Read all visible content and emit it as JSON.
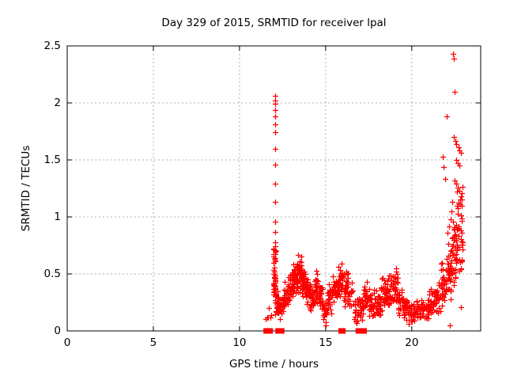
{
  "window": {
    "background": "#ffffff"
  },
  "chart_data": {
    "type": "scatter",
    "title": "Day 329 of 2015, SRMTID for receiver lpal",
    "xlabel": "GPS time / hours",
    "ylabel": "SRMTID / TECUs",
    "xlim": [
      0,
      24
    ],
    "ylim": [
      0,
      2.5
    ],
    "xticks": [
      0,
      5,
      10,
      15,
      20
    ],
    "xtick_labels": [
      "0",
      "5",
      "10",
      "15",
      "20"
    ],
    "yticks": [
      0,
      0.5,
      1,
      1.5,
      2,
      2.5
    ],
    "ytick_labels": [
      "0",
      "0.5",
      "1",
      "1.5",
      "2",
      "2.5"
    ],
    "grid": true,
    "grid_style": "dashed-gray",
    "grid_color": "#b0b0b0",
    "border_color": "#000000",
    "legend": "none",
    "series": [
      {
        "name": "SRMTID",
        "marker": "+",
        "marker_size_px": 7,
        "color": "#ff0000",
        "note": "no data before 11.5 h; vertical spike at 12.07 h up to 2.06; band 0.05-0.7 from 12.3-22 h; rising funnel to 2.43 near 22.4-23 h; clusters pinned at 0 shown as solid blocks",
        "dense_bands": [
          [
            11.5,
            11.85,
            0.08,
            0.25,
            6
          ],
          [
            11.95,
            12.1,
            0.18,
            0.62,
            34
          ],
          [
            11.98,
            12.12,
            0.55,
            0.8,
            14
          ],
          [
            12.05,
            12.28,
            0.1,
            0.4,
            26
          ],
          [
            12.28,
            12.55,
            0.1,
            0.32,
            24
          ],
          [
            12.55,
            12.85,
            0.15,
            0.45,
            30
          ],
          [
            12.85,
            13.1,
            0.22,
            0.55,
            34
          ],
          [
            13.1,
            13.35,
            0.3,
            0.65,
            38
          ],
          [
            13.35,
            13.6,
            0.33,
            0.72,
            40
          ],
          [
            13.6,
            13.85,
            0.28,
            0.58,
            34
          ],
          [
            13.85,
            14.1,
            0.2,
            0.48,
            30
          ],
          [
            14.1,
            14.35,
            0.15,
            0.42,
            28
          ],
          [
            14.35,
            14.6,
            0.2,
            0.55,
            30
          ],
          [
            14.6,
            14.85,
            0.15,
            0.45,
            26
          ],
          [
            14.85,
            15.1,
            0.05,
            0.3,
            22
          ],
          [
            15.1,
            15.4,
            0.15,
            0.45,
            28
          ],
          [
            15.4,
            15.7,
            0.22,
            0.52,
            30
          ],
          [
            15.7,
            16.0,
            0.25,
            0.62,
            34
          ],
          [
            16.0,
            16.3,
            0.2,
            0.55,
            24
          ],
          [
            16.3,
            16.6,
            0.18,
            0.5,
            16
          ],
          [
            16.6,
            16.9,
            0.06,
            0.3,
            20
          ],
          [
            16.9,
            17.2,
            0.08,
            0.35,
            24
          ],
          [
            17.2,
            17.55,
            0.12,
            0.47,
            30
          ],
          [
            17.55,
            17.9,
            0.08,
            0.38,
            28
          ],
          [
            17.9,
            18.2,
            0.1,
            0.4,
            28
          ],
          [
            18.2,
            18.55,
            0.15,
            0.5,
            30
          ],
          [
            18.55,
            18.9,
            0.18,
            0.52,
            30
          ],
          [
            18.9,
            19.2,
            0.2,
            0.58,
            32
          ],
          [
            19.2,
            19.5,
            0.12,
            0.42,
            26
          ],
          [
            19.5,
            19.8,
            0.08,
            0.3,
            24
          ],
          [
            19.8,
            20.2,
            0.05,
            0.25,
            30
          ],
          [
            20.2,
            20.6,
            0.06,
            0.28,
            28
          ],
          [
            20.6,
            21.0,
            0.08,
            0.3,
            28
          ],
          [
            21.0,
            21.35,
            0.1,
            0.38,
            28
          ],
          [
            21.35,
            21.7,
            0.12,
            0.5,
            28
          ],
          [
            21.7,
            22.0,
            0.18,
            0.62,
            30
          ],
          [
            22.0,
            22.3,
            0.25,
            0.82,
            36
          ],
          [
            22.3,
            22.6,
            0.35,
            1.05,
            40
          ],
          [
            22.6,
            22.95,
            0.45,
            1.0,
            30
          ],
          [
            22.6,
            22.95,
            1.0,
            1.35,
            10
          ]
        ],
        "points": [
          [
            12.07,
            2.06
          ],
          [
            12.07,
            2.02
          ],
          [
            12.07,
            1.99
          ],
          [
            12.07,
            1.94
          ],
          [
            12.07,
            1.88
          ],
          [
            12.07,
            1.81
          ],
          [
            12.07,
            1.74
          ],
          [
            12.07,
            1.6
          ],
          [
            12.07,
            1.46
          ],
          [
            12.07,
            1.29
          ],
          [
            12.07,
            1.13
          ],
          [
            12.07,
            0.96
          ],
          [
            12.07,
            0.87
          ],
          [
            22.4,
            2.43
          ],
          [
            22.45,
            2.39
          ],
          [
            22.5,
            2.1
          ],
          [
            22.02,
            1.88
          ],
          [
            22.42,
            1.7
          ],
          [
            22.52,
            1.67
          ],
          [
            22.6,
            1.64
          ],
          [
            22.7,
            1.61
          ],
          [
            22.78,
            1.58
          ],
          [
            22.86,
            1.56
          ],
          [
            21.8,
            1.53
          ],
          [
            22.58,
            1.5
          ],
          [
            22.66,
            1.47
          ],
          [
            22.74,
            1.45
          ],
          [
            21.86,
            1.44
          ],
          [
            21.92,
            1.33
          ],
          [
            22.5,
            1.32
          ],
          [
            22.58,
            1.29
          ],
          [
            22.68,
            1.26
          ],
          [
            22.78,
            1.23
          ],
          [
            22.88,
            1.21
          ],
          [
            22.35,
            1.13
          ],
          [
            22.62,
            1.1
          ],
          [
            22.9,
            1.15
          ],
          [
            22.3,
            1.05
          ],
          [
            22.25,
            0.98
          ],
          [
            22.15,
            0.92
          ],
          [
            22.05,
            0.86
          ],
          [
            22.2,
            0.05
          ],
          [
            22.85,
            0.21
          ],
          [
            15.02,
            0.05
          ],
          [
            16.78,
            0.07
          ]
        ],
        "zero_clusters": [
          [
            11.48,
            11.63
          ],
          [
            11.7,
            11.85
          ],
          [
            12.17,
            12.52
          ],
          [
            15.83,
            16.07
          ],
          [
            16.83,
            17.03
          ],
          [
            17.08,
            17.3
          ]
        ]
      }
    ]
  }
}
